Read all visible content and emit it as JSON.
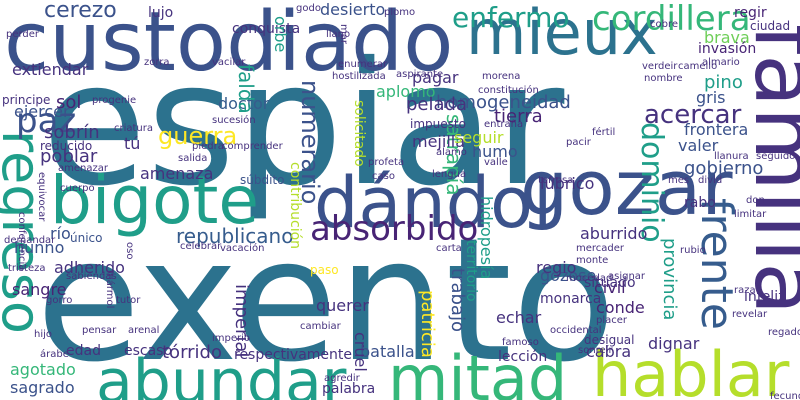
{
  "palette": {
    "purple": "#46327e",
    "indigo": "#3b528b",
    "blue": "#365c8d",
    "steel": "#2c728e",
    "teal": "#1f9e89",
    "green": "#35b779",
    "lime": "#6ece58",
    "yellowgreen": "#b5de2b",
    "yellow": "#fde725",
    "dark": "#482475"
  },
  "words": [
    {
      "text": "espiar",
      "color": "steel"
    },
    {
      "text": "exento",
      "color": "steel"
    },
    {
      "text": "custodiado",
      "color": "indigo"
    },
    {
      "text": "mieux",
      "color": "steel"
    },
    {
      "text": "bigote",
      "color": "teal"
    },
    {
      "text": "dándol",
      "color": "indigo"
    },
    {
      "text": "gozar",
      "color": "indigo"
    },
    {
      "text": "abundar",
      "color": "teal"
    },
    {
      "text": "mitad",
      "color": "green"
    },
    {
      "text": "hablar",
      "color": "yellowgreen"
    },
    {
      "text": "familia",
      "color": "purple"
    },
    {
      "text": "regreso",
      "color": "teal"
    },
    {
      "text": "frente",
      "color": "blue"
    },
    {
      "text": "absorbido",
      "color": "dark"
    },
    {
      "text": "cordillera",
      "color": "green"
    },
    {
      "text": "enfermo",
      "color": "teal"
    },
    {
      "text": "cerezo",
      "color": "indigo"
    },
    {
      "text": "paz",
      "color": "indigo"
    },
    {
      "text": "guerra",
      "color": "yellow"
    },
    {
      "text": "numerario",
      "color": "indigo"
    },
    {
      "text": "dominio",
      "color": "teal"
    },
    {
      "text": "acercar",
      "color": "purple"
    },
    {
      "text": "republicano",
      "color": "blue"
    },
    {
      "text": "gobierno",
      "color": "indigo"
    },
    {
      "text": "homogeneidad",
      "color": "indigo"
    },
    {
      "text": "desierto",
      "color": "indigo"
    },
    {
      "text": "conquista",
      "color": "purple"
    },
    {
      "text": "lujo",
      "color": "purple"
    },
    {
      "text": "regir",
      "color": "dark"
    },
    {
      "text": "extiendar",
      "color": "purple"
    },
    {
      "text": "ejercer",
      "color": "indigo"
    },
    {
      "text": "sol",
      "color": "dark"
    },
    {
      "text": "doctor",
      "color": "blue"
    },
    {
      "text": "falda",
      "color": "teal"
    },
    {
      "text": "aplomo",
      "color": "green"
    },
    {
      "text": "pelada",
      "color": "purple"
    },
    {
      "text": "pagar",
      "color": "purple"
    },
    {
      "text": "tierra",
      "color": "dark"
    },
    {
      "text": "satrapía",
      "color": "green"
    },
    {
      "text": "valer",
      "color": "indigo"
    },
    {
      "text": "frontera",
      "color": "indigo"
    },
    {
      "text": "gris",
      "color": "indigo"
    },
    {
      "text": "pino",
      "color": "teal"
    },
    {
      "text": "sobrín",
      "color": "purple"
    },
    {
      "text": "poblar",
      "color": "purple"
    },
    {
      "text": "amenaza",
      "color": "purple"
    },
    {
      "text": "mejilla",
      "color": "purple"
    },
    {
      "text": "humo",
      "color": "indigo"
    },
    {
      "text": "lúbrico",
      "color": "purple"
    },
    {
      "text": "seguir",
      "color": "yellowgreen"
    },
    {
      "text": "río",
      "color": "indigo"
    },
    {
      "text": "hunno",
      "color": "indigo"
    },
    {
      "text": "sangre",
      "color": "dark"
    },
    {
      "text": "adherido",
      "color": "purple"
    },
    {
      "text": "imperial",
      "color": "purple"
    },
    {
      "text": "querer",
      "color": "purple"
    },
    {
      "text": "echar",
      "color": "purple"
    },
    {
      "text": "trabajo",
      "color": "indigo"
    },
    {
      "text": "gozoso",
      "color": "indigo"
    },
    {
      "text": "civil",
      "color": "dark"
    },
    {
      "text": "conde",
      "color": "dark"
    },
    {
      "text": "tórrido",
      "color": "purple"
    },
    {
      "text": "agotado",
      "color": "green"
    },
    {
      "text": "sagrado",
      "color": "indigo"
    },
    {
      "text": "edad",
      "color": "purple"
    },
    {
      "text": "escaso",
      "color": "purple"
    },
    {
      "text": "respectivamente",
      "color": "purple"
    },
    {
      "text": "batalla",
      "color": "indigo"
    },
    {
      "text": "lección",
      "color": "purple"
    },
    {
      "text": "cabra",
      "color": "purple"
    },
    {
      "text": "dignar",
      "color": "purple"
    },
    {
      "text": "palabra",
      "color": "purple"
    },
    {
      "text": "provincia",
      "color": "teal"
    },
    {
      "text": "abundar2",
      "color": "teal"
    },
    {
      "text": "aburrido",
      "color": "purple"
    },
    {
      "text": "tú",
      "color": "purple"
    },
    {
      "text": "regio",
      "color": "purple"
    },
    {
      "text": "situado",
      "color": "purple"
    },
    {
      "text": "monarca",
      "color": "purple"
    },
    {
      "text": "patricia",
      "color": "yellow"
    },
    {
      "text": "hidropesía",
      "color": "teal"
    },
    {
      "text": "cruel",
      "color": "purple"
    },
    {
      "text": "brava",
      "color": "lime"
    },
    {
      "text": "invasión",
      "color": "dark"
    },
    {
      "text": "orbe",
      "color": "teal"
    },
    {
      "text": "infeliz",
      "color": "purple"
    },
    {
      "text": "rabo",
      "color": "purple"
    },
    {
      "text": "principe",
      "color": "purple"
    },
    {
      "text": "progenie",
      "color": "purple"
    },
    {
      "text": "contribución",
      "color": "yellowgreen"
    },
    {
      "text": "solicitado",
      "color": "yellowgreen"
    },
    {
      "text": "impuesto",
      "color": "purple"
    },
    {
      "text": "reducido",
      "color": "purple"
    },
    {
      "text": "súbdito",
      "color": "indigo"
    },
    {
      "text": "único",
      "color": "indigo"
    },
    {
      "text": "vacación",
      "color": "purple"
    },
    {
      "text": "paso",
      "color": "yellow"
    },
    {
      "text": "territorio",
      "color": "teal"
    },
    {
      "text": "revelar",
      "color": "purple"
    },
    {
      "text": "regado",
      "color": "purple"
    },
    {
      "text": "divid",
      "color": "purple"
    },
    {
      "text": "mes",
      "color": "purple"
    },
    {
      "text": "terrosa",
      "color": "purple"
    },
    {
      "text": "desigual",
      "color": "purple"
    },
    {
      "text": "sonreír",
      "color": "purple"
    },
    {
      "text": "famoso",
      "color": "purple"
    },
    {
      "text": "ciudad",
      "color": "purple"
    },
    {
      "text": "almario",
      "color": "purple"
    },
    {
      "text": "camello",
      "color": "purple"
    },
    {
      "text": "verdeir",
      "color": "purple"
    },
    {
      "text": "nombre",
      "color": "purple"
    },
    {
      "text": "cobre",
      "color": "purple"
    },
    {
      "text": "godo",
      "color": "purple"
    },
    {
      "text": "plomo",
      "color": "purple"
    },
    {
      "text": "llano",
      "color": "purple"
    },
    {
      "text": "mar",
      "color": "purple"
    },
    {
      "text": "vacilar",
      "color": "purple"
    },
    {
      "text": "zorra",
      "color": "purple"
    },
    {
      "text": "perder",
      "color": "purple"
    },
    {
      "text": "aspirante",
      "color": "purple"
    },
    {
      "text": "constitución",
      "color": "purple"
    },
    {
      "text": "enumerar",
      "color": "purple"
    },
    {
      "text": "hostilizada",
      "color": "purple"
    },
    {
      "text": "morena",
      "color": "purple"
    },
    {
      "text": "entraña",
      "color": "purple"
    },
    {
      "text": "sucesión",
      "color": "purple"
    },
    {
      "text": "piedra",
      "color": "purple"
    },
    {
      "text": "comprender",
      "color": "purple"
    },
    {
      "text": "salida",
      "color": "purple"
    },
    {
      "text": "criatura",
      "color": "purple"
    },
    {
      "text": "profeta",
      "color": "purple"
    },
    {
      "text": "álamo",
      "color": "purple"
    },
    {
      "text": "valle",
      "color": "purple"
    },
    {
      "text": "fértil",
      "color": "purple"
    },
    {
      "text": "pacir",
      "color": "purple"
    },
    {
      "text": "caso",
      "color": "purple"
    },
    {
      "text": "lengua",
      "color": "purple"
    },
    {
      "text": "amenazar",
      "color": "purple"
    },
    {
      "text": "cuerpo",
      "color": "purple"
    },
    {
      "text": "equivocar",
      "color": "purple"
    },
    {
      "text": "conferencia",
      "color": "purple"
    },
    {
      "text": "demandar",
      "color": "purple"
    },
    {
      "text": "tristeza",
      "color": "purple"
    },
    {
      "text": "sabiendas",
      "color": "purple"
    },
    {
      "text": "oso",
      "color": "purple"
    },
    {
      "text": "celebrar",
      "color": "purple"
    },
    {
      "text": "carta",
      "color": "purple"
    },
    {
      "text": "mercader",
      "color": "purple"
    },
    {
      "text": "monte",
      "color": "purple"
    },
    {
      "text": "asignar",
      "color": "purple"
    },
    {
      "text": "mocedad",
      "color": "purple"
    },
    {
      "text": "raza",
      "color": "purple"
    },
    {
      "text": "rubio",
      "color": "purple"
    },
    {
      "text": "limitar",
      "color": "purple"
    },
    {
      "text": "don",
      "color": "purple"
    },
    {
      "text": "seguido",
      "color": "purple"
    },
    {
      "text": "llanura",
      "color": "purple"
    },
    {
      "text": "gorro",
      "color": "purple"
    },
    {
      "text": "tutor",
      "color": "purple"
    },
    {
      "text": "mármol",
      "color": "purple"
    },
    {
      "text": "hijo",
      "color": "purple"
    },
    {
      "text": "pensar",
      "color": "purple"
    },
    {
      "text": "árabe",
      "color": "purple"
    },
    {
      "text": "arenal",
      "color": "purple"
    },
    {
      "text": "imperio",
      "color": "purple"
    },
    {
      "text": "cambiar",
      "color": "purple"
    },
    {
      "text": "occidental",
      "color": "purple"
    },
    {
      "text": "placer",
      "color": "purple"
    },
    {
      "text": "agredir",
      "color": "purple"
    },
    {
      "text": "fecunda",
      "color": "purple"
    }
  ]
}
